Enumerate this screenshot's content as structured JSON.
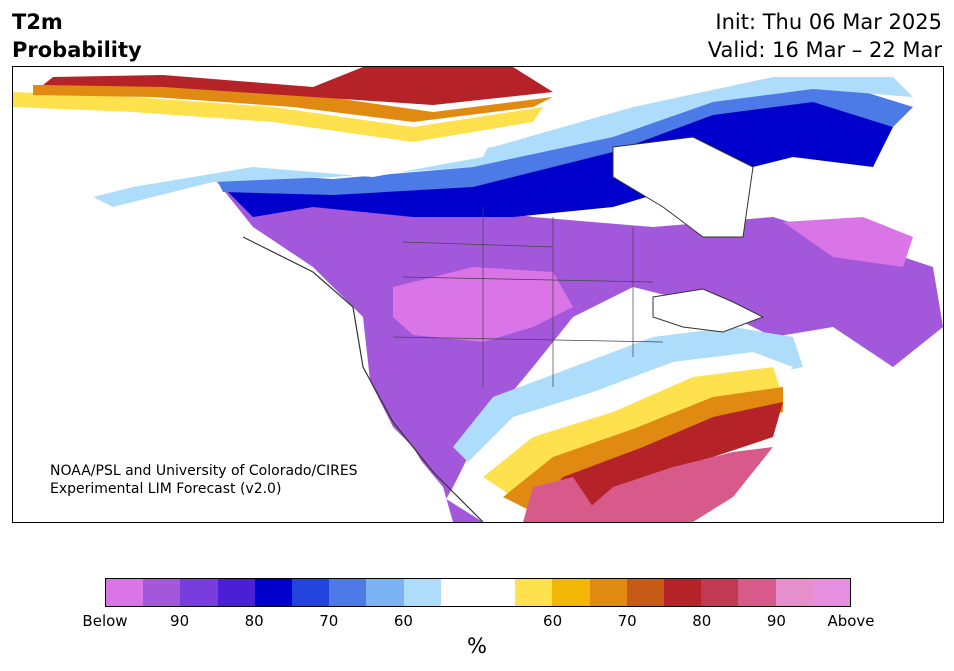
{
  "title": {
    "left_line1": "T2m",
    "left_line2": "Probability",
    "init": "Init: Thu 06 Mar 2025",
    "valid": "Valid: 16 Mar – 22 Mar"
  },
  "credit": {
    "line1": "NOAA/PSL and University of Colorado/CIRES",
    "line2": "Experimental LIM Forecast (v2.0)"
  },
  "colorbar": {
    "colors": [
      "#d975e6",
      "#a358db",
      "#7a3ddd",
      "#4a1fd6",
      "#0000cc",
      "#2244dd",
      "#4c7ae6",
      "#7ab4f2",
      "#aedcfb",
      "#ffffff",
      "#ffffff",
      "#ffe14d",
      "#f2b705",
      "#e08a12",
      "#c75a16",
      "#b52227",
      "#c23a52",
      "#d85a8b",
      "#e68fcd",
      "#e68fe0"
    ],
    "tick_labels": [
      "Below",
      "90",
      "80",
      "70",
      "60",
      "60",
      "70",
      "80",
      "90",
      "Above"
    ],
    "unit": "%"
  },
  "colors": {
    "below_strong": "#a358db",
    "below_peak": "#d975e6",
    "blue_dark": "#0000cc",
    "blue_mid": "#4c7ae6",
    "blue_light": "#aedcfb",
    "above_light": "#ffe14d",
    "above_mid": "#e08a12",
    "above_dark": "#b52227",
    "above_strong": "#d85a8b"
  }
}
